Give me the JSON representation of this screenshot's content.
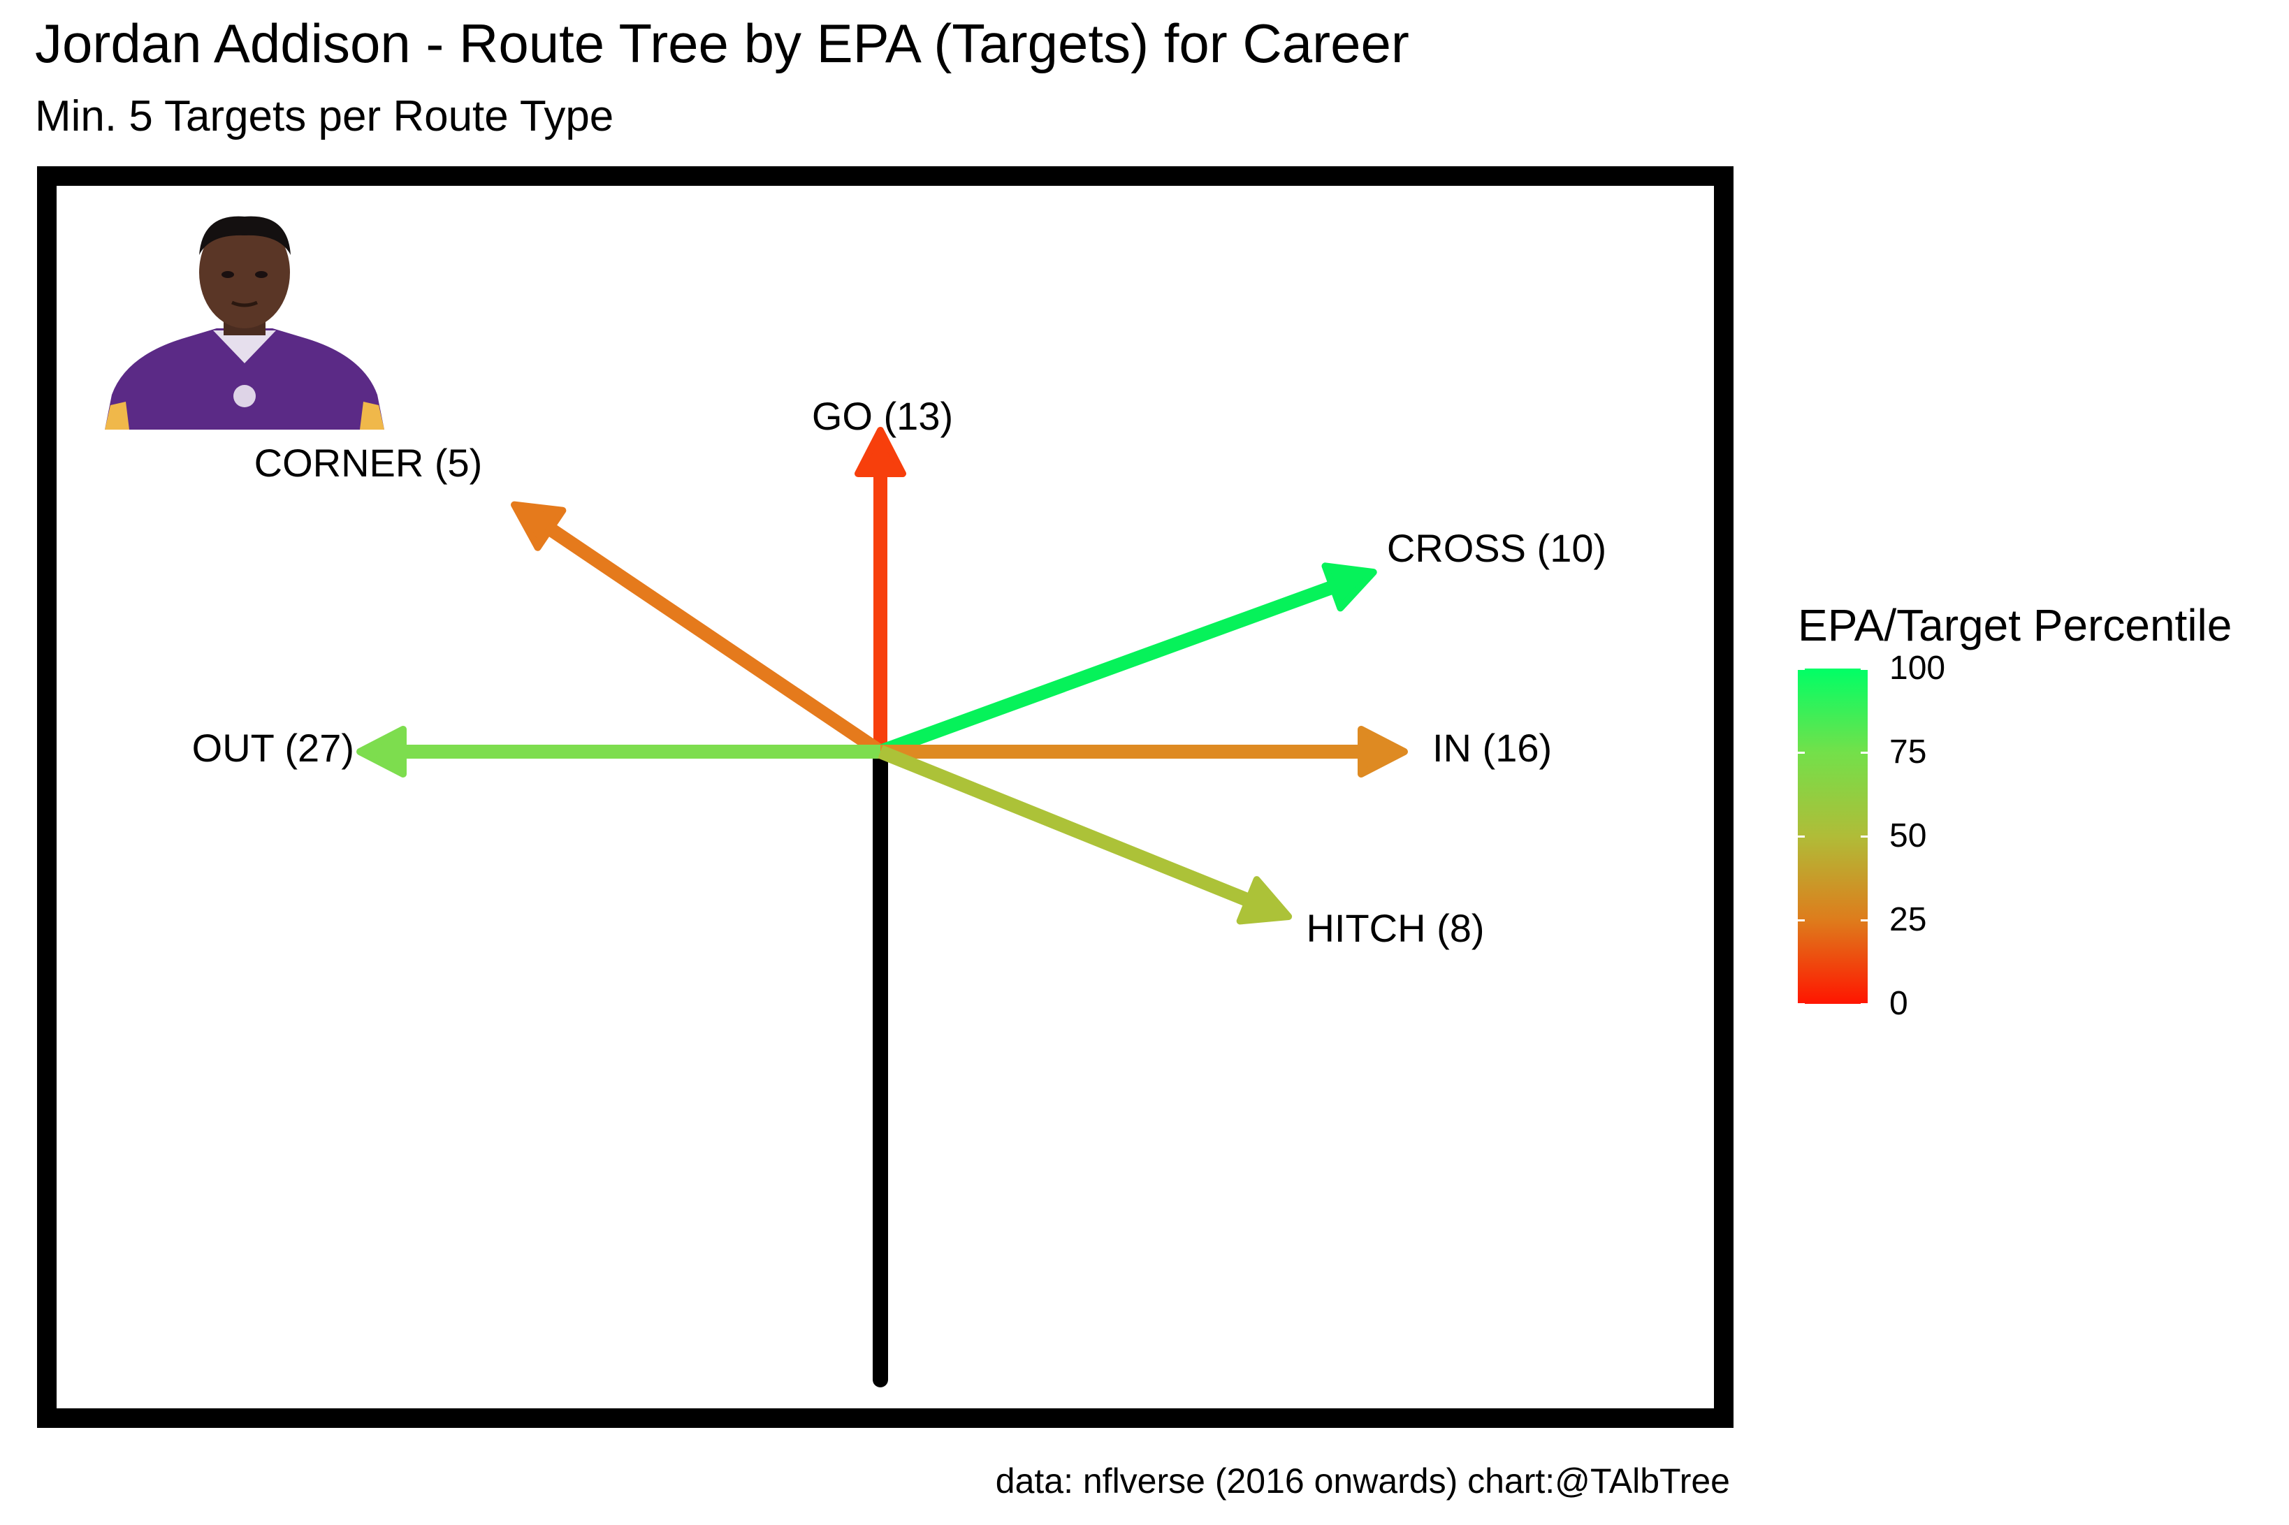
{
  "title": "Jordan Addison - Route Tree by EPA (Targets) for Career",
  "subtitle": "Min. 5 Targets per Route Type",
  "caption": "data: nflverse (2016 onwards)  chart:@TAlbTree",
  "legend": {
    "title": "EPA/Target Percentile",
    "ticks": [
      "100",
      "75",
      "50",
      "25",
      "0"
    ],
    "colors": {
      "high": "#00ff66",
      "low": "#ff1500"
    }
  },
  "chart_data": {
    "type": "route-tree",
    "title": "Jordan Addison - Route Tree by EPA (Targets) for Career",
    "subtitle": "Min. 5 Targets per Route Type",
    "color_scale": {
      "min": 0,
      "max": 100,
      "low_color": "#ff1500",
      "high_color": "#00ff66"
    },
    "routes": [
      {
        "route": "GO",
        "targets": 13,
        "label": "GO (13)",
        "angle_deg": 90,
        "color": "#f73f0c"
      },
      {
        "route": "CORNER",
        "targets": 5,
        "label": "CORNER (5)",
        "angle_deg": 146,
        "color": "#e57a1c"
      },
      {
        "route": "CROSS",
        "targets": 10,
        "label": "CROSS (10)",
        "angle_deg": 20,
        "color": "#06f25a"
      },
      {
        "route": "OUT",
        "targets": 27,
        "label": "OUT (27)",
        "angle_deg": 180,
        "color": "#7ddd4e"
      },
      {
        "route": "IN",
        "targets": 16,
        "label": "IN (16)",
        "angle_deg": 0,
        "color": "#de8a22"
      },
      {
        "route": "HITCH",
        "targets": 8,
        "label": "HITCH (8)",
        "angle_deg": -22,
        "color": "#acc238"
      }
    ],
    "stem_color": "#000000"
  }
}
